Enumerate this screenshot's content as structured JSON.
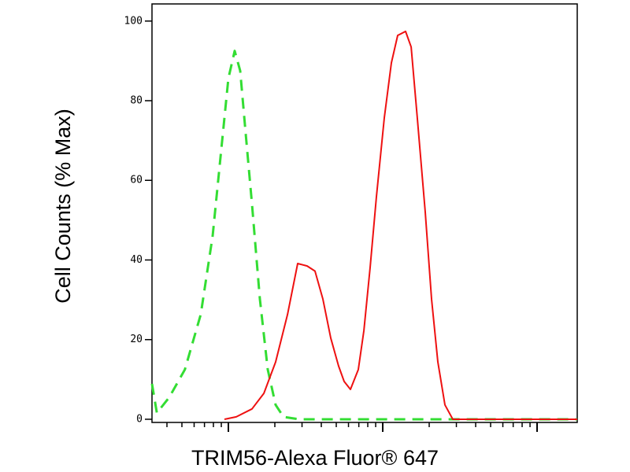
{
  "chart_data": {
    "type": "line",
    "x_label": "TRIM56-Alexa Fluor® 647",
    "y_label": "Cell Counts (% Max)",
    "xscale": "log",
    "xlim": [
      320,
      182000
    ],
    "xticks": [
      1000,
      10000,
      100000
    ],
    "xminorticks": [
      400,
      500,
      600,
      700,
      800,
      900,
      2000,
      3000,
      4000,
      5000,
      6000,
      7000,
      8000,
      9000,
      20000,
      30000,
      40000,
      50000,
      60000,
      70000,
      80000,
      90000
    ],
    "ylim": [
      -0.8,
      104.3
    ],
    "yticks": [
      0,
      20,
      40,
      60,
      80,
      100
    ],
    "series": [
      {
        "color": "#33dd33",
        "dashed": true,
        "x": [
          320,
          344,
          414,
          523,
          662,
          791,
          889,
          1000,
          1099,
          1193,
          1295,
          1422,
          1600,
          1799,
          2023,
          2275,
          2877,
          6546,
          38200,
          182000
        ],
        "values": [
          8.9,
          1.6,
          5.5,
          12.5,
          26.3,
          46.0,
          65.8,
          85.6,
          92.5,
          87.5,
          71.7,
          54.0,
          30.2,
          12.5,
          3.6,
          0.6,
          0,
          0,
          0,
          0
        ]
      },
      {
        "color": "#ee1111",
        "dashed": false,
        "x": [
          943,
          1125,
          1422,
          1698,
          2023,
          2415,
          2813,
          3236,
          3639,
          4093,
          4603,
          5176,
          5623,
          6180,
          6950,
          7551,
          8281,
          9104,
          10240,
          11380,
          12500,
          14060,
          15280,
          16750,
          18860,
          20710,
          22760,
          25290,
          28440,
          182000
        ],
        "values": [
          0,
          0.6,
          2.6,
          6.5,
          14.4,
          26.3,
          39.1,
          38.5,
          37.2,
          30.2,
          20.4,
          13.4,
          9.5,
          7.5,
          12.5,
          22.3,
          38.1,
          55.9,
          75.7,
          89.5,
          96.4,
          97.4,
          93.5,
          75.7,
          52.0,
          30.2,
          14.4,
          3.6,
          0,
          0
        ]
      }
    ]
  }
}
